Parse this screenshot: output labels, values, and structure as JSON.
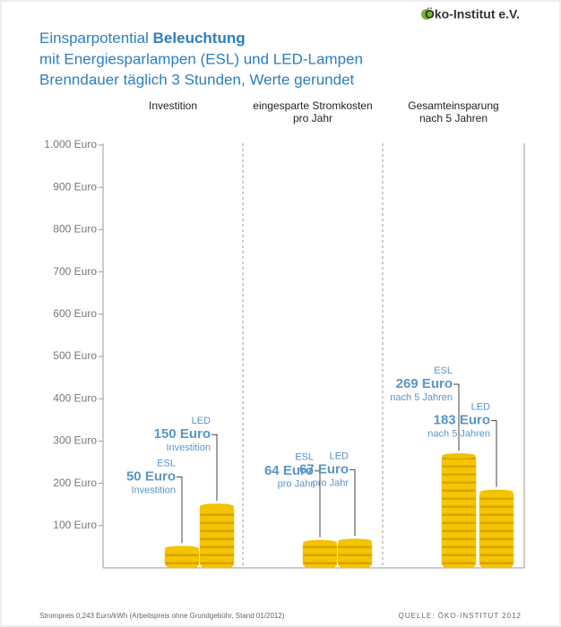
{
  "brand": "Öko-Institut e.V.",
  "chart_data": {
    "type": "coin-stack",
    "title": [
      "Einsparpotential",
      "Beleuchtung"
    ],
    "subtitle": [
      "mit Energiesparlampen (ESL) und LED-Lampen",
      "Brenndauer täglich 3 Stunden, Werte gerundet"
    ],
    "categories": [
      [
        "Investition"
      ],
      [
        "eingesparte Stromkosten",
        "pro Jahr"
      ],
      [
        "Gesamteinsparung",
        "nach 5 Jahren"
      ]
    ],
    "annotations": [
      "Investition",
      "pro Jahr",
      "nach 5 Jahren"
    ],
    "series": [
      {
        "name": "ESL",
        "color": "#f2c300",
        "values": [
          50,
          64,
          269
        ],
        "value_labels": [
          "50 Euro",
          "64 Euro",
          "269 Euro"
        ]
      },
      {
        "name": "LED",
        "color": "#f2c300",
        "values": [
          150,
          67,
          183
        ],
        "value_labels": [
          "150 Euro",
          "67 Euro",
          "183 Euro"
        ]
      }
    ],
    "ylim": [
      0,
      1000
    ],
    "yticks": [
      {
        "value": 100,
        "label": "100 Euro"
      },
      {
        "value": 200,
        "label": "200 Euro"
      },
      {
        "value": 300,
        "label": "300 Euro"
      },
      {
        "value": 400,
        "label": "400 Euro"
      },
      {
        "value": 500,
        "label": "500 Euro"
      },
      {
        "value": 600,
        "label": "600 Euro"
      },
      {
        "value": 700,
        "label": "700 Euro"
      },
      {
        "value": 800,
        "label": "800 Euro"
      },
      {
        "value": 900,
        "label": "900 Euro"
      },
      {
        "value": 1000,
        "label": "1.000 Euro"
      }
    ]
  },
  "footer": {
    "note": "Strompreis 0,243 Euro/kWh (Arbeitspreis ohne Grundgebühr, Stand 01/2012)",
    "source": "QUELLE: ÖKO-INSTITUT 2012"
  }
}
